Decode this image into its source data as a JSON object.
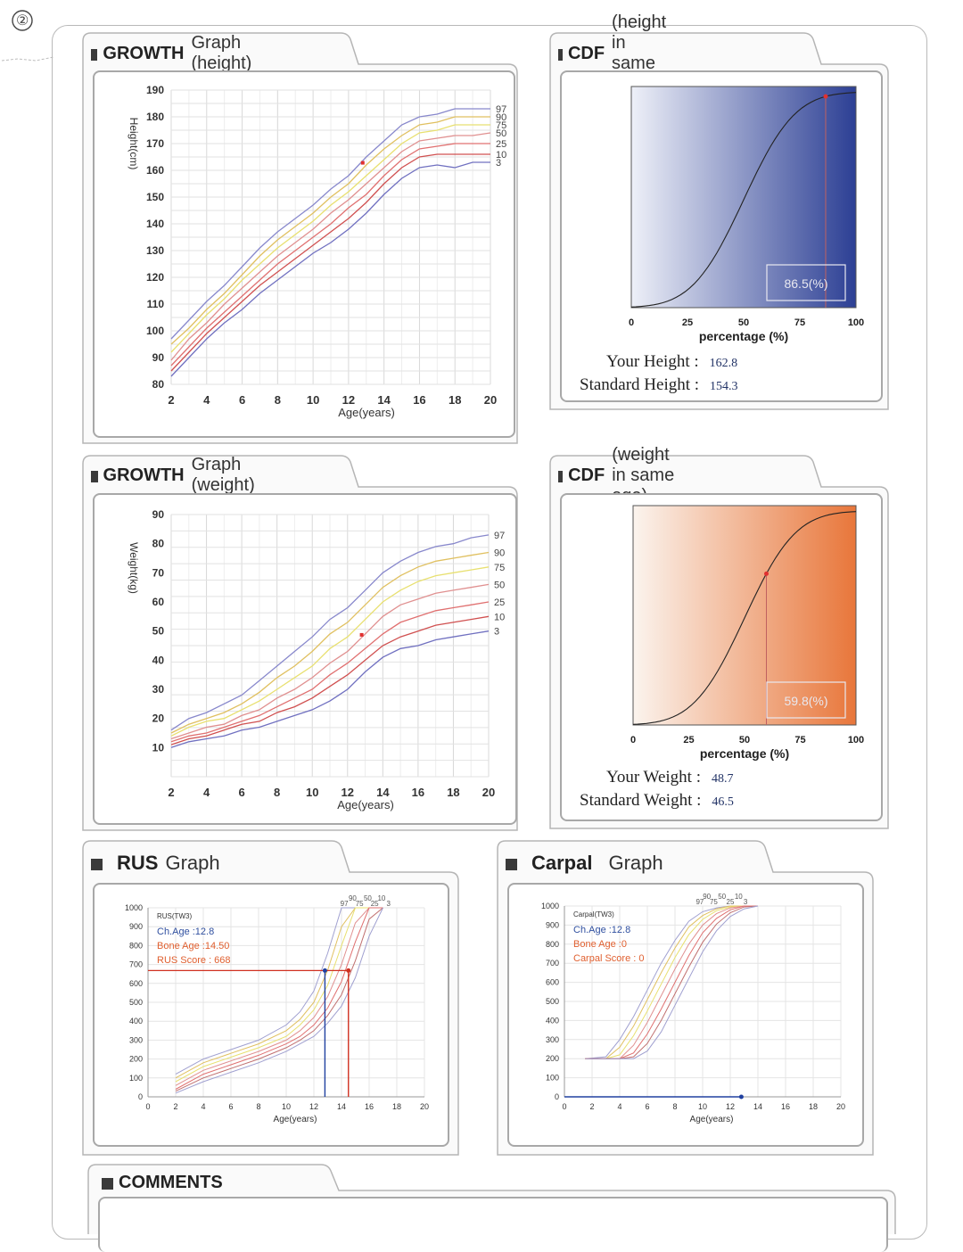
{
  "page": {
    "mark": "②"
  },
  "height_growth": {
    "bold": "GROWTH",
    "normal": "Graph (height)",
    "chart_data": {
      "type": "line",
      "ylabel": "Height(cm)",
      "xlabel": "Age(years)",
      "xlim": [
        2,
        20
      ],
      "ylim": [
        80,
        190
      ],
      "xticks": [
        2,
        4,
        6,
        8,
        10,
        12,
        14,
        16,
        18,
        20
      ],
      "yticks": [
        80,
        90,
        100,
        110,
        120,
        130,
        140,
        150,
        160,
        170,
        180,
        190
      ],
      "grid": true,
      "x": [
        2,
        3,
        4,
        5,
        6,
        7,
        8,
        9,
        10,
        11,
        12,
        13,
        14,
        15,
        16,
        17,
        18,
        19,
        20
      ],
      "series": [
        {
          "name": "97",
          "color": "#8888cc",
          "values": [
            97,
            104,
            111,
            117,
            124,
            131,
            137,
            142,
            147,
            153,
            158,
            165,
            171,
            177,
            180,
            181,
            183,
            183,
            183
          ]
        },
        {
          "name": "90",
          "color": "#e0c060",
          "values": [
            95,
            101,
            108,
            114,
            121,
            128,
            134,
            139,
            144,
            150,
            155,
            162,
            168,
            173,
            177,
            178,
            180,
            180,
            180
          ]
        },
        {
          "name": "75",
          "color": "#e8e070",
          "values": [
            92,
            99,
            106,
            112,
            119,
            125,
            131,
            136,
            141,
            147,
            152,
            158,
            164,
            170,
            174,
            175,
            177,
            177,
            177
          ]
        },
        {
          "name": "50",
          "color": "#e09090",
          "values": [
            89,
            97,
            103,
            110,
            116,
            122,
            128,
            133,
            138,
            144,
            149,
            155,
            161,
            167,
            171,
            172,
            173,
            173,
            174
          ]
        },
        {
          "name": "25",
          "color": "#e07070",
          "values": [
            87,
            94,
            101,
            107,
            113,
            119,
            125,
            130,
            135,
            140,
            146,
            151,
            158,
            164,
            168,
            169,
            170,
            170,
            170
          ]
        },
        {
          "name": "10",
          "color": "#d05050",
          "values": [
            85,
            92,
            99,
            105,
            111,
            117,
            122,
            127,
            132,
            137,
            142,
            148,
            155,
            161,
            165,
            166,
            166,
            166,
            166
          ]
        },
        {
          "name": "3",
          "color": "#7070c0",
          "values": [
            83,
            90,
            97,
            103,
            108,
            114,
            119,
            124,
            129,
            133,
            138,
            144,
            151,
            157,
            161,
            162,
            161,
            163,
            163
          ]
        }
      ],
      "point": {
        "x": 12.8,
        "y": 162.8,
        "color": "#e03030"
      }
    }
  },
  "height_cdf": {
    "bold": "CDF",
    "normal": "(height in same age)",
    "chart_data": {
      "type": "line",
      "xlabel": "percentage (%)",
      "xlim": [
        0,
        100
      ],
      "xticks": [
        0,
        25,
        50,
        75,
        100
      ],
      "marker_x": 86.5,
      "marker_label": "86.5(%)",
      "gradient": [
        "#eef0f8",
        "#2c3f94"
      ]
    },
    "info": [
      {
        "label": "Your Height :",
        "value": "162.8"
      },
      {
        "label": "Standard Height :",
        "value": "154.3"
      }
    ]
  },
  "weight_growth": {
    "bold": "GROWTH",
    "normal": "Graph (weight)",
    "chart_data": {
      "type": "line",
      "ylabel": "Weight(kg)",
      "xlabel": "Age(years)",
      "xlim": [
        2,
        20
      ],
      "ylim": [
        0,
        90
      ],
      "xticks": [
        2,
        4,
        6,
        8,
        10,
        12,
        14,
        16,
        18,
        20
      ],
      "yticks": [
        10,
        20,
        30,
        40,
        50,
        60,
        70,
        80,
        90
      ],
      "grid": true,
      "x": [
        2,
        3,
        4,
        5,
        6,
        7,
        8,
        9,
        10,
        11,
        12,
        13,
        14,
        15,
        16,
        17,
        18,
        19,
        20
      ],
      "series": [
        {
          "name": "97",
          "color": "#8888cc",
          "values": [
            16,
            20,
            22,
            25,
            28,
            33,
            38,
            43,
            48,
            54,
            58,
            64,
            70,
            74,
            77,
            79,
            80,
            82,
            83
          ]
        },
        {
          "name": "90",
          "color": "#e0c060",
          "values": [
            15,
            18,
            20,
            22,
            25,
            29,
            34,
            38,
            43,
            49,
            53,
            59,
            65,
            69,
            72,
            74,
            75,
            76,
            77
          ]
        },
        {
          "name": "75",
          "color": "#e8e070",
          "values": [
            14,
            17,
            19,
            20,
            23,
            26,
            30,
            34,
            38,
            44,
            48,
            54,
            60,
            64,
            67,
            69,
            70,
            71,
            72
          ]
        },
        {
          "name": "50",
          "color": "#e09090",
          "values": [
            13,
            15,
            17,
            18,
            21,
            23,
            27,
            30,
            34,
            39,
            43,
            49,
            55,
            59,
            61,
            63,
            64,
            65,
            66
          ]
        },
        {
          "name": "25",
          "color": "#e07070",
          "values": [
            12,
            14,
            15,
            17,
            19,
            21,
            24,
            27,
            30,
            35,
            39,
            44,
            49,
            53,
            55,
            57,
            58,
            59,
            60
          ]
        },
        {
          "name": "10",
          "color": "#d05050",
          "values": [
            11,
            13,
            14,
            16,
            18,
            19,
            22,
            24,
            27,
            31,
            35,
            40,
            45,
            48,
            50,
            52,
            53,
            54,
            55
          ]
        },
        {
          "name": "3",
          "color": "#7070c0",
          "values": [
            10,
            12,
            13,
            14,
            16,
            17,
            19,
            21,
            23,
            26,
            30,
            36,
            41,
            44,
            45,
            47,
            48,
            49,
            50
          ]
        }
      ],
      "point": {
        "x": 12.8,
        "y": 48.7,
        "color": "#e03030"
      }
    }
  },
  "weight_cdf": {
    "bold": "CDF",
    "normal": "(weight in same age)",
    "chart_data": {
      "type": "line",
      "xlabel": "percentage (%)",
      "xlim": [
        0,
        100
      ],
      "xticks": [
        0,
        25,
        50,
        75,
        100
      ],
      "marker_x": 59.8,
      "marker_label": "59.8(%)",
      "gradient": [
        "#fbf4ee",
        "#e8763a"
      ]
    },
    "info": [
      {
        "label": "Your Weight :",
        "value": "48.7"
      },
      {
        "label": "Standard Weight :",
        "value": "46.5"
      }
    ]
  },
  "rus": {
    "bold": "RUS",
    "normal": "Graph",
    "chart_data": {
      "type": "line",
      "xlabel": "Age(years)",
      "xlim": [
        0,
        20
      ],
      "ylim": [
        0,
        1000
      ],
      "xticks": [
        0,
        2,
        4,
        6,
        8,
        10,
        12,
        14,
        16,
        18,
        20
      ],
      "yticks": [
        0,
        100,
        200,
        300,
        400,
        500,
        600,
        700,
        800,
        900,
        1000
      ],
      "legend_title": "RUS(TW3)",
      "ch_age": "Ch.Age :12.8",
      "bone_age": "Bone Age :14.50",
      "score": "RUS Score : 668",
      "centile_labels": [
        "97",
        "90",
        "75",
        "50",
        "25",
        "10",
        "3"
      ],
      "x": [
        2,
        4,
        6,
        8,
        10,
        11,
        12,
        13,
        14,
        15,
        16,
        17
      ],
      "series": [
        {
          "name": "97",
          "color": "#a0a0d0",
          "values": [
            120,
            200,
            250,
            300,
            380,
            450,
            560,
            760,
            1000,
            1000,
            1000,
            1000
          ]
        },
        {
          "name": "90",
          "color": "#e0c060",
          "values": [
            100,
            180,
            230,
            280,
            350,
            410,
            500,
            670,
            900,
            1000,
            1000,
            1000
          ]
        },
        {
          "name": "75",
          "color": "#e8e070",
          "values": [
            80,
            160,
            210,
            260,
            320,
            380,
            460,
            590,
            800,
            1000,
            1000,
            1000
          ]
        },
        {
          "name": "50",
          "color": "#e09090",
          "values": [
            60,
            140,
            190,
            240,
            300,
            350,
            420,
            530,
            700,
            920,
            1000,
            1000
          ]
        },
        {
          "name": "25",
          "color": "#e07070",
          "values": [
            40,
            120,
            170,
            220,
            280,
            320,
            380,
            470,
            610,
            820,
            1000,
            1000
          ]
        },
        {
          "name": "10",
          "color": "#c07070",
          "values": [
            30,
            100,
            150,
            200,
            260,
            300,
            350,
            430,
            540,
            720,
            940,
            1000
          ]
        },
        {
          "name": "3",
          "color": "#a0a0d0",
          "values": [
            20,
            80,
            130,
            180,
            240,
            280,
            320,
            390,
            480,
            630,
            850,
            1000
          ]
        }
      ],
      "ch_age_x": 12.8,
      "bone_age_x": 14.5,
      "score_y": 668
    }
  },
  "carpal": {
    "bold": "Carpal",
    "normal": "Graph",
    "chart_data": {
      "type": "line",
      "xlabel": "Age(years)",
      "xlim": [
        0,
        20
      ],
      "ylim": [
        0,
        1000
      ],
      "xticks": [
        0,
        2,
        4,
        6,
        8,
        10,
        12,
        14,
        16,
        18,
        20
      ],
      "yticks": [
        0,
        100,
        200,
        300,
        400,
        500,
        600,
        700,
        800,
        900,
        1000
      ],
      "legend_title": "Carpal(TW3)",
      "ch_age": "Ch.Age :12.8",
      "bone_age": "Bone Age :0",
      "score": "Carpal Score : 0",
      "centile_labels": [
        "97",
        "90",
        "75",
        "50",
        "25",
        "10",
        "3"
      ],
      "x": [
        1.5,
        3,
        4,
        5,
        6,
        7,
        8,
        9,
        10,
        11,
        12,
        13,
        14
      ],
      "series": [
        {
          "name": "97",
          "color": "#a0a0d0",
          "values": [
            200,
            210,
            300,
            420,
            560,
            700,
            820,
            920,
            970,
            990,
            1000,
            1000,
            1000
          ]
        },
        {
          "name": "90",
          "color": "#e0c060",
          "values": [
            200,
            200,
            260,
            370,
            510,
            650,
            780,
            890,
            950,
            985,
            1000,
            1000,
            1000
          ]
        },
        {
          "name": "75",
          "color": "#e8e070",
          "values": [
            200,
            200,
            220,
            320,
            450,
            590,
            730,
            850,
            930,
            975,
            995,
            1000,
            1000
          ]
        },
        {
          "name": "50",
          "color": "#e09090",
          "values": [
            200,
            200,
            200,
            270,
            390,
            530,
            670,
            800,
            900,
            960,
            990,
            1000,
            1000
          ]
        },
        {
          "name": "25",
          "color": "#e07070",
          "values": [
            200,
            200,
            200,
            230,
            330,
            460,
            600,
            740,
            860,
            935,
            980,
            1000,
            1000
          ]
        },
        {
          "name": "10",
          "color": "#c07070",
          "values": [
            200,
            200,
            200,
            210,
            280,
            400,
            540,
            680,
            810,
            905,
            965,
            995,
            1000
          ]
        },
        {
          "name": "3",
          "color": "#a0a0d0",
          "values": [
            200,
            200,
            200,
            200,
            240,
            340,
            480,
            620,
            760,
            870,
            945,
            985,
            1000
          ]
        }
      ],
      "ch_age_x": 12.8,
      "score_y": 0
    }
  },
  "comments": {
    "title": "COMMENTS"
  }
}
